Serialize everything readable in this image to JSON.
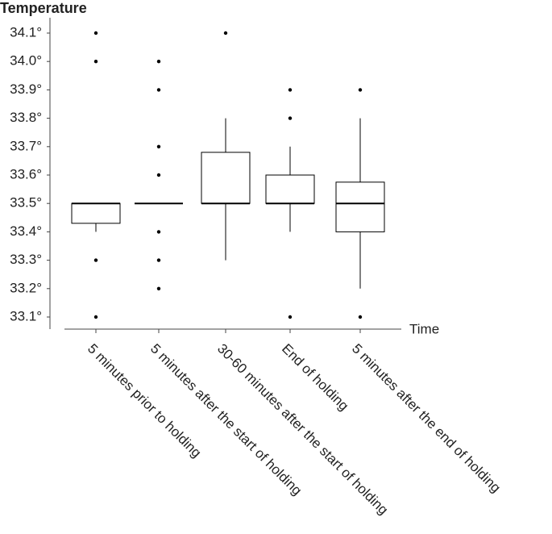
{
  "chart_data": {
    "type": "box",
    "y_label": "Temperature",
    "x_label": "Time",
    "categories": [
      "5 minutes prior to holding",
      "5 minutes after the start of holding",
      "30-60 minutes after the start of holding",
      "End of holding",
      "5 minutes after the end of holding"
    ],
    "boxes": [
      {
        "min": 33.4,
        "q1": 33.43,
        "median": 33.5,
        "q3": 33.5,
        "max": 33.5,
        "outliers": [
          34.1,
          34.0,
          33.3,
          33.1
        ]
      },
      {
        "min": 33.5,
        "q1": 33.5,
        "median": 33.5,
        "q3": 33.5,
        "max": 33.5,
        "outliers": [
          34.0,
          33.9,
          33.7,
          33.6,
          33.4,
          33.3,
          33.2
        ]
      },
      {
        "min": 33.3,
        "q1": 33.5,
        "median": 33.5,
        "q3": 33.68,
        "max": 33.8,
        "outliers": [
          34.1
        ]
      },
      {
        "min": 33.4,
        "q1": 33.5,
        "median": 33.5,
        "q3": 33.6,
        "max": 33.7,
        "outliers": [
          33.9,
          33.8,
          33.1
        ]
      },
      {
        "min": 33.2,
        "q1": 33.4,
        "median": 33.5,
        "q3": 33.575,
        "max": 33.8,
        "outliers": [
          33.9,
          33.1
        ]
      }
    ],
    "color": "#000000",
    "ylim": [
      33.05,
      34.15
    ],
    "yticks": [
      {
        "value": 33.1,
        "label": "33.1°"
      },
      {
        "value": 33.2,
        "label": "33.2°"
      },
      {
        "value": 33.3,
        "label": "33.3°"
      },
      {
        "value": 33.4,
        "label": "33.4°"
      },
      {
        "value": 33.5,
        "label": "33.5°"
      },
      {
        "value": 33.6,
        "label": "33.6°"
      },
      {
        "value": 33.7,
        "label": "33.7°"
      },
      {
        "value": 33.8,
        "label": "33.8°"
      },
      {
        "value": 33.9,
        "label": "33.9°"
      },
      {
        "value": 34.0,
        "label": "34.0°"
      },
      {
        "value": 34.1,
        "label": "34.1°"
      }
    ]
  }
}
